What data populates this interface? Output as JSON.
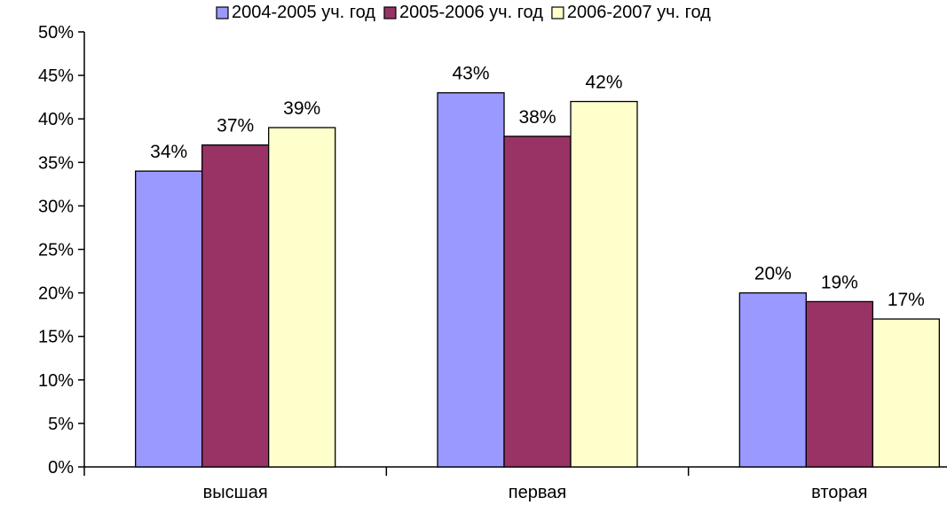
{
  "chart_data": {
    "type": "bar",
    "categories": [
      "высшая",
      "первая",
      "вторая"
    ],
    "series": [
      {
        "name": "2004-2005 уч. год",
        "values": [
          34,
          43,
          20
        ],
        "labels": [
          "34%",
          "43%",
          "20%"
        ],
        "color": "#9999ff"
      },
      {
        "name": "2005-2006 уч. год",
        "values": [
          37,
          38,
          19
        ],
        "labels": [
          "37%",
          "38%",
          "19%"
        ],
        "color": "#993366"
      },
      {
        "name": "2006-2007 уч. год",
        "values": [
          39,
          42,
          17
        ],
        "labels": [
          "39%",
          "42%",
          "17%"
        ],
        "color": "#ffffcc"
      }
    ],
    "ylim": [
      0,
      50
    ],
    "yticks": [
      "0%",
      "5%",
      "10%",
      "15%",
      "20%",
      "25%",
      "30%",
      "35%",
      "40%",
      "45%",
      "50%"
    ],
    "ytick_values": [
      0,
      5,
      10,
      15,
      20,
      25,
      30,
      35,
      40,
      45,
      50
    ],
    "grid": false,
    "legend_position": "top-right",
    "bar_border_color": "#000000"
  }
}
